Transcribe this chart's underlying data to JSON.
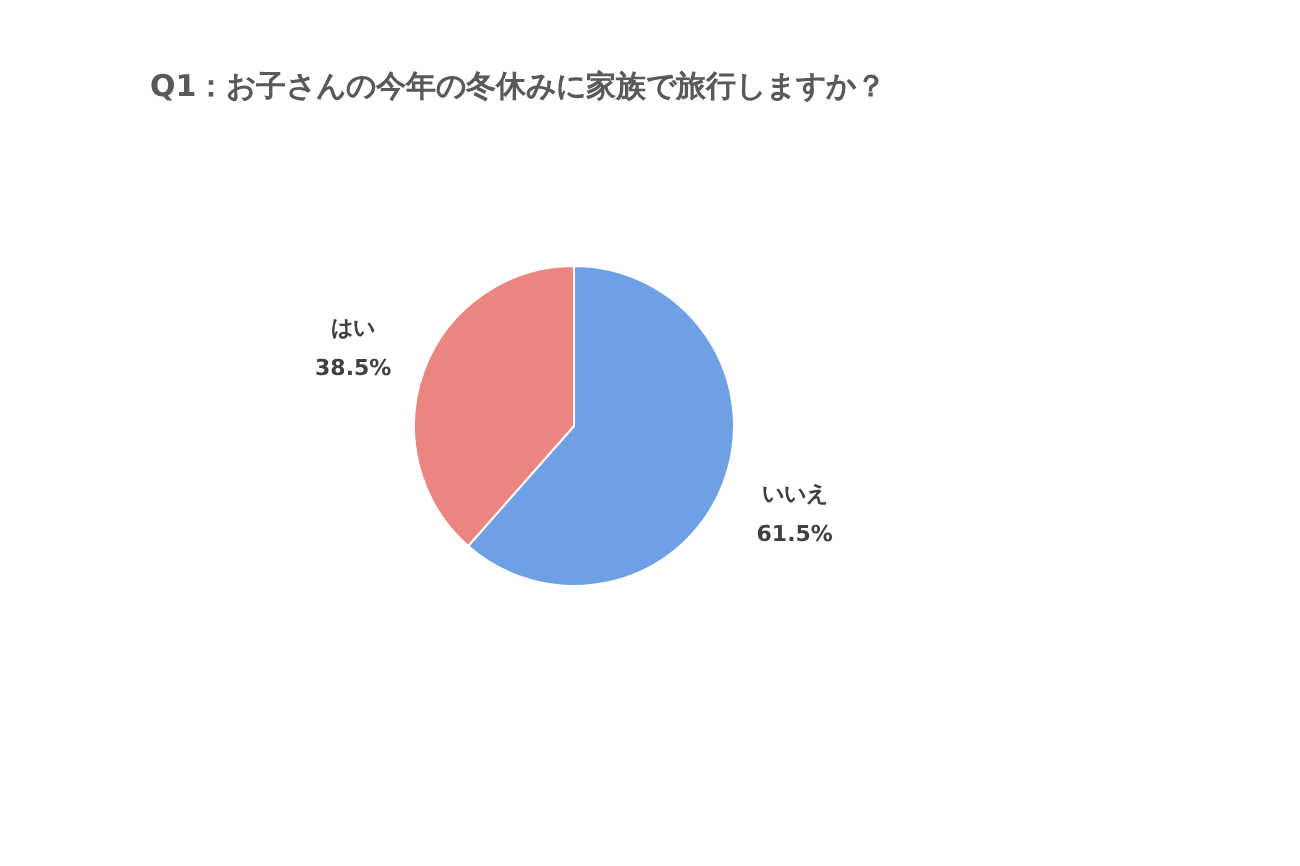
{
  "chart_data": {
    "type": "pie",
    "title": "Q1：お子さんの今年の冬休みに家族で旅行しますか？",
    "categories": [
      "いいえ",
      "はい"
    ],
    "values": [
      61.5,
      38.5
    ],
    "colors": [
      "#6fa0e6",
      "#ec8580"
    ],
    "value_labels": [
      "61.5%",
      "38.5%"
    ],
    "legend": false
  }
}
